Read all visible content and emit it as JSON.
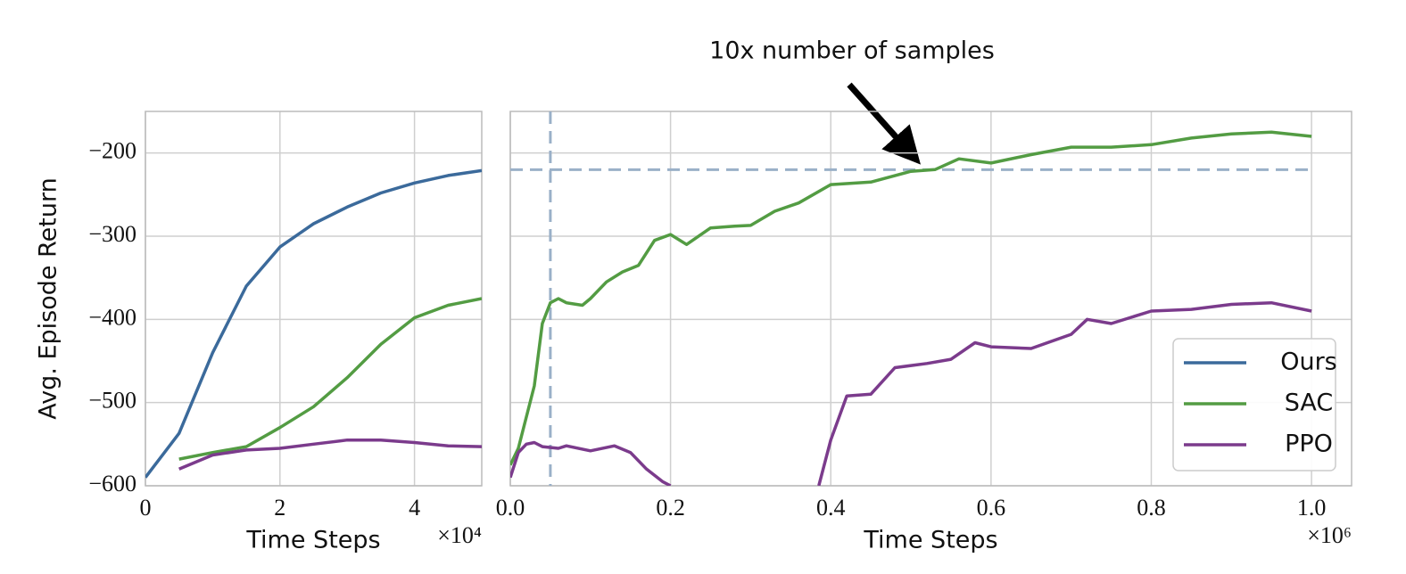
{
  "annotation": "10x number of samples",
  "chart_data": [
    {
      "type": "line",
      "ylabel": "Avg. Episode Return",
      "xlabel": "Time Steps",
      "x_multiplier": "×10⁴",
      "x": [
        0,
        0.5,
        1,
        1.5,
        2,
        2.5,
        3,
        3.5,
        4,
        4.5,
        5
      ],
      "series": [
        {
          "name": "Ours",
          "color": "#3b6a9b",
          "values": [
            -590,
            -537,
            -440,
            -360,
            -313,
            -285,
            -265,
            -248,
            -236,
            -227,
            -221
          ]
        },
        {
          "name": "SAC",
          "color": "#539c43",
          "values": [
            null,
            -568,
            -560,
            -553,
            -530,
            -505,
            -470,
            -430,
            -398,
            -383,
            -375
          ]
        },
        {
          "name": "PPO",
          "color": "#7b3b8c",
          "values": [
            null,
            -580,
            -563,
            -557,
            -555,
            -550,
            -545,
            -545,
            -548,
            -552,
            -553
          ]
        }
      ],
      "xlim": [
        0,
        5
      ],
      "ylim": [
        -600,
        -150
      ],
      "xticks": [
        0,
        2,
        4
      ],
      "yticks": [
        {
          "value": -600,
          "label": "−600"
        },
        {
          "value": -500,
          "label": "−500"
        },
        {
          "value": -400,
          "label": "−400"
        },
        {
          "value": -300,
          "label": "−300"
        },
        {
          "value": -200,
          "label": "−200"
        }
      ],
      "grid": true
    },
    {
      "type": "line",
      "xlabel": "Time Steps",
      "x_multiplier": "×10⁶",
      "series": [
        {
          "color": "#539c43",
          "x": [
            0,
            0.01,
            0.03,
            0.04,
            0.05,
            0.06,
            0.07,
            0.09,
            0.1,
            0.12,
            0.14,
            0.16,
            0.18,
            0.2,
            0.22,
            0.25,
            0.28,
            0.3,
            0.33,
            0.36,
            0.4,
            0.45,
            0.5,
            0.53,
            0.56,
            0.6,
            0.65,
            0.7,
            0.75,
            0.8,
            0.85,
            0.9,
            0.95,
            1.0
          ],
          "values": [
            -575,
            -555,
            -480,
            -405,
            -380,
            -375,
            -380,
            -383,
            -375,
            -355,
            -343,
            -335,
            -305,
            -298,
            -310,
            -290,
            -288,
            -287,
            -270,
            -260,
            -238,
            -235,
            -222,
            -220,
            -207,
            -212,
            -202,
            -193,
            -193,
            -190,
            -182,
            -177,
            -175,
            -180
          ]
        },
        {
          "color": "#7b3b8c",
          "x": [
            0,
            0.01,
            0.02,
            0.03,
            0.04,
            0.06,
            0.07,
            0.1,
            0.13,
            0.15,
            0.17,
            0.19,
            0.2,
            0.3,
            0.385,
            0.4,
            0.42,
            0.45,
            0.48,
            0.52,
            0.55,
            0.58,
            0.6,
            0.65,
            0.7,
            0.72,
            0.75,
            0.8,
            0.85,
            0.9,
            0.95,
            1.0
          ],
          "values": [
            -590,
            -560,
            -550,
            -548,
            -553,
            -555,
            -552,
            -558,
            -552,
            -560,
            -580,
            -595,
            -600,
            null,
            -600,
            -545,
            -492,
            -490,
            -458,
            -453,
            -448,
            -428,
            -433,
            -435,
            -418,
            -400,
            -405,
            -390,
            -388,
            -382,
            -380,
            -390
          ]
        }
      ],
      "hline": -220,
      "vline": 0.05,
      "xlim": [
        0,
        1.05
      ],
      "ylim": [
        -600,
        -150
      ],
      "xticks": [
        {
          "value": 0,
          "label": "0.0"
        },
        0.2,
        0.4,
        0.6,
        0.8,
        {
          "value": 1,
          "label": "1.0"
        }
      ],
      "yticks": [
        -600,
        -500,
        -400,
        -300,
        -200
      ],
      "grid": true
    }
  ]
}
